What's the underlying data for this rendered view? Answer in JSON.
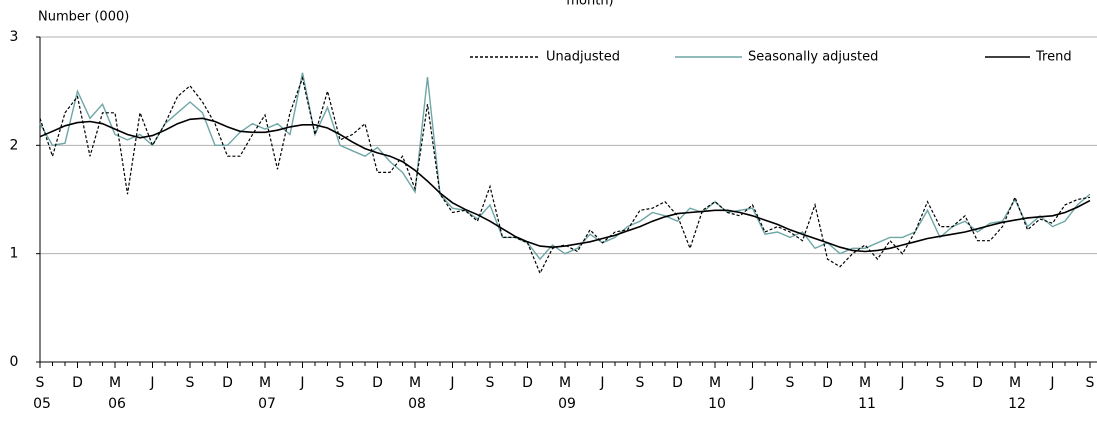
{
  "chart_data": {
    "type": "line",
    "title": "month)",
    "y_axis_label": "Number (000)",
    "categories": [
      "S",
      null,
      null,
      "D",
      null,
      null,
      "M",
      null,
      null,
      "J",
      null,
      null,
      "S",
      null,
      null,
      "D",
      null,
      null,
      "M",
      null,
      null,
      "J",
      null,
      null,
      "S",
      null,
      null,
      "D",
      null,
      null,
      "M",
      null,
      null,
      "J",
      null,
      null,
      "S",
      null,
      null,
      "D",
      null,
      null,
      "M",
      null,
      null,
      "J",
      null,
      null,
      "S",
      null,
      null,
      "D",
      null,
      null,
      "M",
      null,
      null,
      "J",
      null,
      null,
      "S",
      null,
      null,
      "D",
      null,
      null,
      "M",
      null,
      null,
      "J",
      null,
      null,
      "S",
      null,
      null,
      "D",
      null,
      null,
      "M",
      null,
      null,
      "J",
      null,
      null,
      "S"
    ],
    "category_years": [
      "05",
      null,
      null,
      null,
      null,
      null,
      "06",
      null,
      null,
      null,
      null,
      null,
      null,
      null,
      null,
      null,
      null,
      null,
      "07",
      null,
      null,
      null,
      null,
      null,
      null,
      null,
      null,
      null,
      null,
      null,
      "08",
      null,
      null,
      null,
      null,
      null,
      null,
      null,
      null,
      null,
      null,
      null,
      "09",
      null,
      null,
      null,
      null,
      null,
      null,
      null,
      null,
      null,
      null,
      null,
      "10",
      null,
      null,
      null,
      null,
      null,
      null,
      null,
      null,
      null,
      null,
      null,
      "11",
      null,
      null,
      null,
      null,
      null,
      null,
      null,
      null,
      null,
      null,
      null,
      "12",
      null,
      null,
      null,
      null,
      null,
      null
    ],
    "series": [
      {
        "name": "Unadjusted",
        "color": "#000000",
        "dash": true,
        "values": [
          2.25,
          1.9,
          2.3,
          2.45,
          1.9,
          2.3,
          2.3,
          1.55,
          2.3,
          2.0,
          2.2,
          2.45,
          2.55,
          2.4,
          2.2,
          1.9,
          1.9,
          2.1,
          2.28,
          1.78,
          2.3,
          2.62,
          2.1,
          2.5,
          2.05,
          2.1,
          2.2,
          1.75,
          1.75,
          1.9,
          1.6,
          2.38,
          1.55,
          1.38,
          1.4,
          1.3,
          1.62,
          1.15,
          1.15,
          1.1,
          0.82,
          1.05,
          1.08,
          1.02,
          1.22,
          1.1,
          1.2,
          1.22,
          1.4,
          1.42,
          1.48,
          1.35,
          1.05,
          1.4,
          1.48,
          1.38,
          1.35,
          1.45,
          1.2,
          1.25,
          1.2,
          1.12,
          1.45,
          0.95,
          0.88,
          1.0,
          1.08,
          0.95,
          1.12,
          1.0,
          1.2,
          1.48,
          1.25,
          1.25,
          1.35,
          1.12,
          1.12,
          1.25,
          1.52,
          1.22,
          1.32,
          1.28,
          1.45,
          1.5,
          1.52
        ]
      },
      {
        "name": "Seasonally adjusted",
        "color": "#6fa6a6",
        "dash": false,
        "values": [
          2.2,
          2.0,
          2.02,
          2.5,
          2.25,
          2.38,
          2.1,
          2.05,
          2.1,
          2.0,
          2.2,
          2.3,
          2.4,
          2.3,
          2.0,
          2.0,
          2.12,
          2.2,
          2.15,
          2.2,
          2.1,
          2.67,
          2.1,
          2.35,
          2.0,
          1.95,
          1.9,
          1.98,
          1.85,
          1.75,
          1.57,
          2.63,
          1.55,
          1.42,
          1.4,
          1.32,
          1.45,
          1.15,
          1.15,
          1.1,
          0.95,
          1.08,
          1.0,
          1.05,
          1.18,
          1.1,
          1.15,
          1.25,
          1.3,
          1.38,
          1.35,
          1.3,
          1.42,
          1.38,
          1.48,
          1.38,
          1.4,
          1.42,
          1.18,
          1.2,
          1.15,
          1.2,
          1.05,
          1.1,
          1.0,
          1.05,
          1.05,
          1.1,
          1.15,
          1.15,
          1.2,
          1.4,
          1.15,
          1.25,
          1.3,
          1.2,
          1.28,
          1.3,
          1.5,
          1.25,
          1.35,
          1.25,
          1.3,
          1.45,
          1.55
        ]
      },
      {
        "name": "Trend",
        "color": "#000000",
        "dash": false,
        "values": [
          2.08,
          2.13,
          2.18,
          2.21,
          2.22,
          2.2,
          2.15,
          2.1,
          2.07,
          2.09,
          2.14,
          2.2,
          2.24,
          2.25,
          2.22,
          2.17,
          2.13,
          2.12,
          2.12,
          2.14,
          2.17,
          2.19,
          2.19,
          2.16,
          2.1,
          2.03,
          1.97,
          1.93,
          1.9,
          1.85,
          1.77,
          1.67,
          1.56,
          1.47,
          1.41,
          1.36,
          1.3,
          1.23,
          1.16,
          1.11,
          1.07,
          1.06,
          1.07,
          1.09,
          1.11,
          1.14,
          1.17,
          1.21,
          1.25,
          1.3,
          1.34,
          1.37,
          1.38,
          1.39,
          1.4,
          1.4,
          1.38,
          1.35,
          1.31,
          1.27,
          1.22,
          1.18,
          1.14,
          1.1,
          1.06,
          1.03,
          1.02,
          1.03,
          1.05,
          1.08,
          1.11,
          1.14,
          1.16,
          1.18,
          1.2,
          1.23,
          1.26,
          1.29,
          1.31,
          1.33,
          1.34,
          1.35,
          1.38,
          1.43,
          1.49
        ]
      }
    ],
    "ylim": [
      0,
      3
    ],
    "yticks": [
      0,
      1,
      2,
      3
    ],
    "grid": true,
    "legend": "top-right"
  }
}
